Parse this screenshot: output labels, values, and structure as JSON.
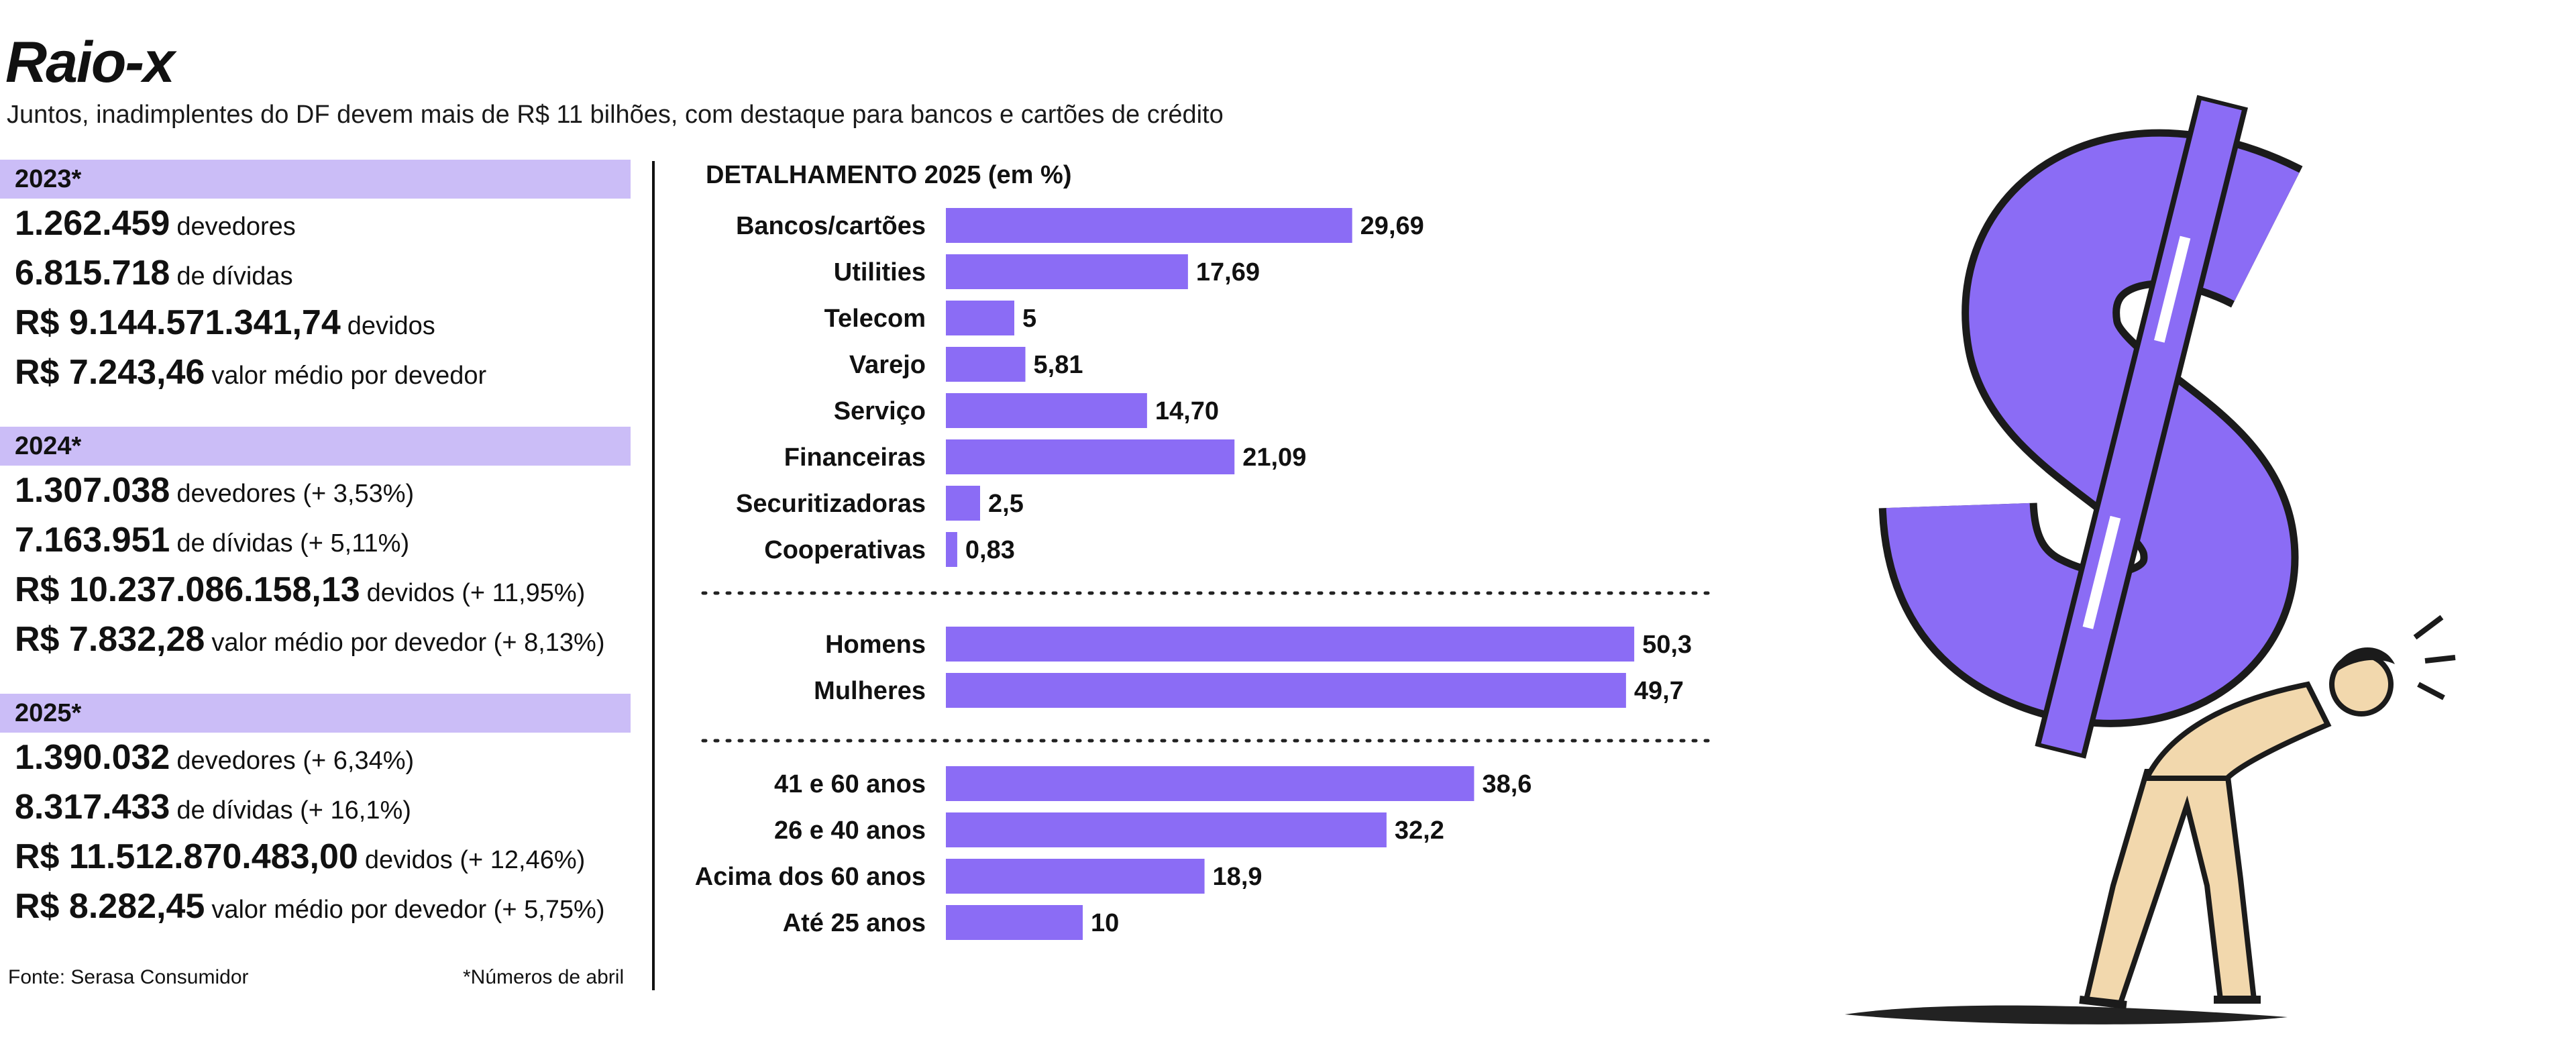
{
  "header": {
    "title": "Raio-x",
    "subtitle": "Juntos, inadimplentes do DF devem mais de R$ 11 bilhões, com destaque para bancos e cartões de crédito"
  },
  "years": [
    {
      "label": "2023*",
      "stats": [
        {
          "value": "1.262.459",
          "text": "devedores"
        },
        {
          "value": "6.815.718",
          "text": "de dívidas"
        },
        {
          "value": "R$ 9.144.571.341,74",
          "text": "devidos"
        },
        {
          "value": "R$ 7.243,46",
          "text": "valor médio por devedor"
        }
      ]
    },
    {
      "label": "2024*",
      "stats": [
        {
          "value": "1.307.038",
          "text": "devedores (+ 3,53%)"
        },
        {
          "value": "7.163.951",
          "text": "de dívidas (+ 5,11%)"
        },
        {
          "value": "R$ 10.237.086.158,13",
          "text": "devidos (+ 11,95%)"
        },
        {
          "value": "R$ 7.832,28",
          "text": "valor médio por devedor (+ 8,13%)"
        }
      ]
    },
    {
      "label": "2025*",
      "stats": [
        {
          "value": "1.390.032",
          "text": "devedores (+ 6,34%)"
        },
        {
          "value": "8.317.433",
          "text": "de dívidas (+ 16,1%)"
        },
        {
          "value": "R$ 11.512.870.483,00",
          "text": "devidos (+ 12,46%)"
        },
        {
          "value": "R$ 8.282,45",
          "text": "valor médio por devedor (+ 5,75%)"
        }
      ]
    }
  ],
  "footer": {
    "source": "Fonte: Serasa Consumidor",
    "note": "*Números de abril"
  },
  "colors": {
    "bar": "#8b6cf5",
    "band": "#cbbdf7",
    "text": "#111111",
    "skin": "#f2d8ad"
  },
  "chart_data": {
    "type": "bar",
    "orientation": "horizontal",
    "title": "DETALHAMENTO 2025 (em %)",
    "xlim": [
      0,
      52
    ],
    "groups": [
      {
        "categories": [
          "Bancos/cartões",
          "Utilities",
          "Telecom",
          "Varejo",
          "Serviço",
          "Financeiras",
          "Securitizadoras",
          "Cooperativas"
        ],
        "values": [
          29.69,
          17.69,
          5,
          5.81,
          14.7,
          21.09,
          2.5,
          0.83
        ],
        "labels": [
          "29,69",
          "17,69",
          "5",
          "5,81",
          "14,70",
          "21,09",
          "2,5",
          "0,83"
        ]
      },
      {
        "categories": [
          "Homens",
          "Mulheres"
        ],
        "values": [
          50.3,
          49.7
        ],
        "labels": [
          "50,3",
          "49,7"
        ]
      },
      {
        "categories": [
          "41 e 60 anos",
          "26 e 40 anos",
          "Acima dos 60 anos",
          "Até 25 anos"
        ],
        "values": [
          38.6,
          32.2,
          18.9,
          10
        ],
        "labels": [
          "38,6",
          "32,2",
          "18,9",
          "10"
        ]
      }
    ]
  },
  "illustration": {
    "subject": "dollar-sign-carried-by-man-icon"
  }
}
